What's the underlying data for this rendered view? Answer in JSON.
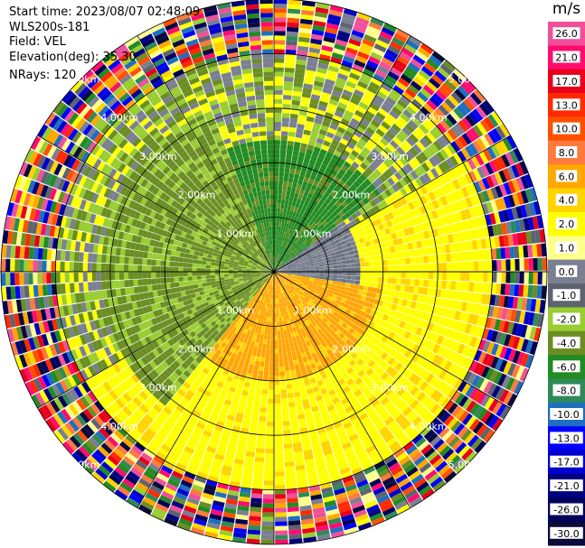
{
  "info": {
    "start_time": "Start time: 2023/08/07 02:48:09",
    "site": "WLS200s-181",
    "field": "Field: VEL",
    "elevation": "Elevation(deg): 35.30",
    "nrays": "NRays: 120"
  },
  "chart_data": {
    "type": "heatmap",
    "projection": "polar-ppi",
    "title": "",
    "xlabel": "",
    "ylabel": "",
    "ring_labels": [
      "1.00km",
      "2.00km",
      "3.00km",
      "4.00km",
      "5.00km"
    ],
    "ring_radii_km": [
      1,
      2,
      3,
      4,
      5
    ],
    "max_range_km": 5.0,
    "nrays": 120,
    "grid": true,
    "radial_grid_lines_deg": [
      0,
      30,
      60,
      90,
      120,
      150,
      180,
      210,
      240,
      270,
      300,
      330
    ],
    "colorbar": {
      "title": "m/s",
      "placement": "right",
      "tick_labels": [
        "26.0",
        "21.0",
        "17.0",
        "13.0",
        "10.0",
        "8.0",
        "6.0",
        "4.0",
        "2.0",
        "1.0",
        "0.0",
        "-1.0",
        "-2.0",
        "-4.0",
        "-6.0",
        "-8.0",
        "-10.0",
        "-13.0",
        "-17.0",
        "-21.0",
        "-26.0",
        "-30.0"
      ],
      "colors": [
        "#f0509a",
        "#ff0d6e",
        "#e8001a",
        "#ff2a00",
        "#ff5000",
        "#ff7a3c",
        "#ffa800",
        "#ffd400",
        "#ffff00",
        "#ffff8c",
        "#7a8090",
        "#5d6470",
        "#9acd32",
        "#6b8e23",
        "#228b22",
        "#2e8b57",
        "#1e6fc0",
        "#0000ff",
        "#0000cd",
        "#000080",
        "#00005a",
        "#0a0a3c"
      ]
    },
    "velocity_regimes": [
      {
        "azimuth_deg": [
          340,
          55
        ],
        "range_km": [
          0,
          2.4
        ],
        "velocity_ms": -5.0
      },
      {
        "azimuth_deg": [
          220,
          340
        ],
        "range_km": [
          0,
          3.2
        ],
        "velocity_ms": -3.0
      },
      {
        "azimuth_deg": [
          55,
          100
        ],
        "range_km": [
          0,
          1.6
        ],
        "velocity_ms": 0.0
      },
      {
        "azimuth_deg": [
          100,
          220
        ],
        "range_km": [
          0,
          2.0
        ],
        "velocity_ms": 5.0
      },
      {
        "azimuth_deg": [
          60,
          240
        ],
        "range_km": [
          1.5,
          4.0
        ],
        "velocity_ms": 2.0
      },
      {
        "azimuth_deg": [
          0,
          360
        ],
        "range_km": [
          4.0,
          5.0
        ],
        "velocity_ms": "noise"
      }
    ]
  }
}
